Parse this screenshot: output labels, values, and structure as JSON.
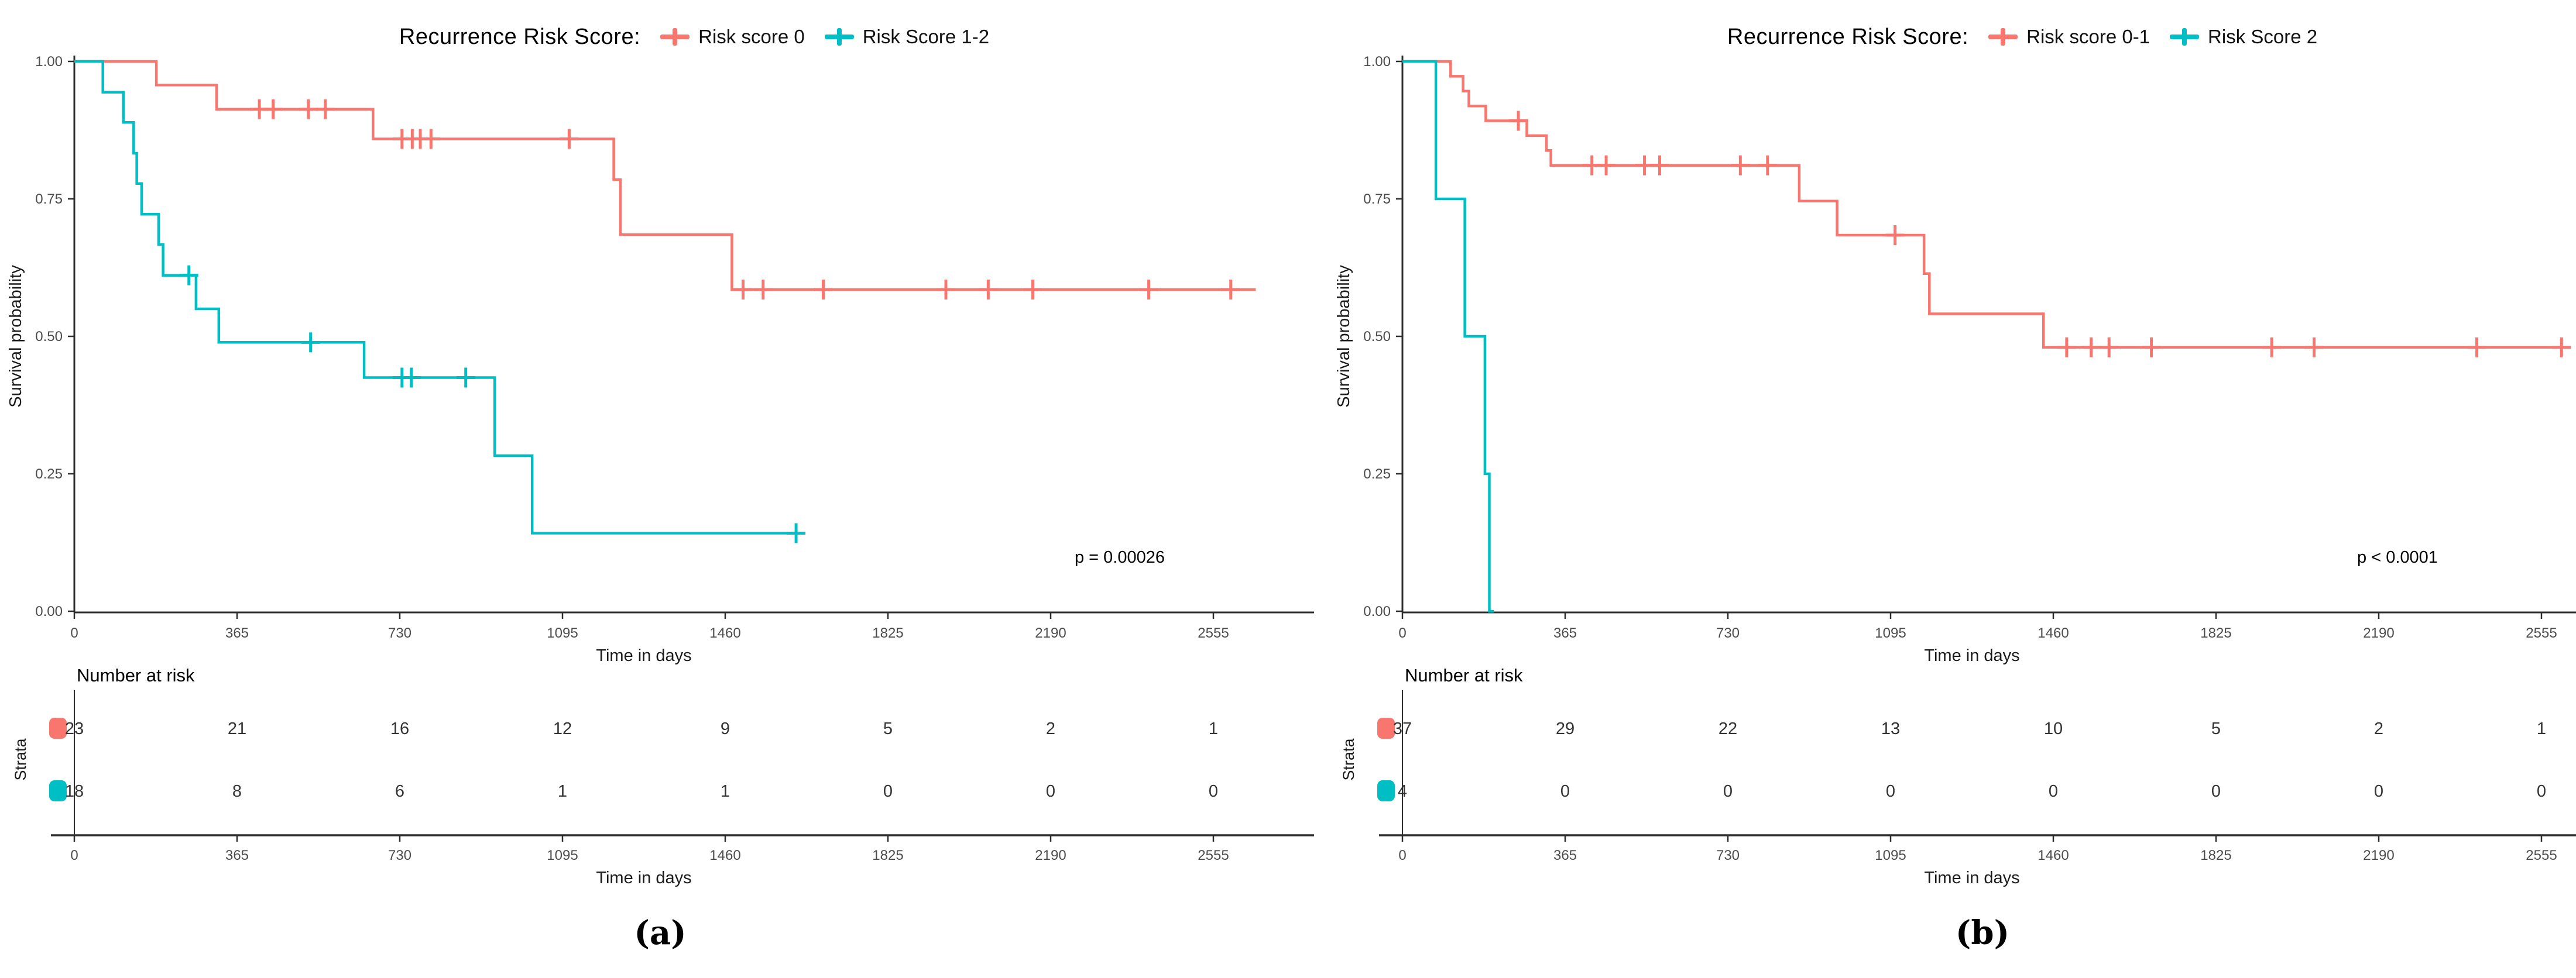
{
  "shared": {
    "legend_title": "Recurrence Risk Score:",
    "x_label": "Time in days",
    "y_label": "Survival probability",
    "x_ticks": [
      0,
      365,
      730,
      1095,
      1460,
      1825,
      2190,
      2555
    ],
    "y_ticks": [
      0,
      0.25,
      0.5,
      0.75,
      1
    ],
    "y_tick_labels": [
      "0.00",
      "0.25",
      "0.50",
      "0.75",
      "1.00"
    ],
    "risk_table_title": "Number at risk",
    "strata_label": "Strata",
    "colors": {
      "red": "#F8766D",
      "teal": "#00BFC4",
      "axis": "#2e2e2e",
      "tick_text": "#4d4d4d",
      "text": "#000000"
    }
  },
  "chart_data": [
    {
      "id": "a",
      "type": "km_step",
      "caption": "(a)",
      "legend_title": "Recurrence Risk Score:",
      "p_value_label": "p = 0.00026",
      "x_label": "Time in days",
      "y_label": "Survival probability",
      "xlim": [
        0,
        2700
      ],
      "ylim": [
        0,
        1
      ],
      "series": [
        {
          "name": "Risk score 0",
          "color_key": "red",
          "steps": [
            [
              0,
              1
            ],
            [
              184,
              0.957
            ],
            [
              319,
              0.913
            ],
            [
              670,
              0.859
            ],
            [
              1210,
              0.785
            ],
            [
              1225,
              0.685
            ],
            [
              1475,
              0.585
            ]
          ],
          "end": 2650,
          "censors": [
            [
              415,
              0.913
            ],
            [
              446,
              0.913
            ],
            [
              525,
              0.913
            ],
            [
              563,
              0.913
            ],
            [
              735,
              0.859
            ],
            [
              758,
              0.859
            ],
            [
              776,
              0.859
            ],
            [
              800,
              0.859
            ],
            [
              1110,
              0.859
            ],
            [
              1500,
              0.585
            ],
            [
              1545,
              0.585
            ],
            [
              1680,
              0.585
            ],
            [
              1955,
              0.585
            ],
            [
              2050,
              0.585
            ],
            [
              2150,
              0.585
            ],
            [
              2410,
              0.585
            ],
            [
              2594,
              0.585
            ]
          ],
          "number_at_risk": [
            23,
            21,
            16,
            12,
            9,
            5,
            2,
            1
          ]
        },
        {
          "name": "Risk Score 1-2",
          "color_key": "teal",
          "steps": [
            [
              0,
              1
            ],
            [
              64,
              0.944
            ],
            [
              110,
              0.889
            ],
            [
              133,
              0.833
            ],
            [
              140,
              0.778
            ],
            [
              151,
              0.722
            ],
            [
              189,
              0.667
            ],
            [
              199,
              0.611
            ],
            [
              273,
              0.55
            ],
            [
              324,
              0.489
            ],
            [
              650,
              0.425
            ],
            [
              943,
              0.283
            ],
            [
              1027,
              0.142
            ]
          ],
          "end": 1619,
          "censors": [
            [
              257,
              0.611
            ],
            [
              530,
              0.489
            ],
            [
              735,
              0.425
            ],
            [
              756,
              0.425
            ],
            [
              878,
              0.425
            ],
            [
              1619,
              0.142
            ]
          ],
          "number_at_risk": [
            18,
            8,
            6,
            1,
            1,
            0,
            0,
            0
          ]
        }
      ]
    },
    {
      "id": "b",
      "type": "km_step",
      "caption": "(b)",
      "legend_title": "Recurrence Risk Score:",
      "p_value_label": "p < 0.0001",
      "x_label": "Time in days",
      "y_label": "Survival probability",
      "xlim": [
        0,
        2700
      ],
      "ylim": [
        0,
        1
      ],
      "series": [
        {
          "name": "Risk score 0-1",
          "color_key": "red",
          "steps": [
            [
              0,
              1
            ],
            [
              108,
              0.973
            ],
            [
              136,
              0.946
            ],
            [
              149,
              0.919
            ],
            [
              187,
              0.892
            ],
            [
              279,
              0.865
            ],
            [
              323,
              0.838
            ],
            [
              333,
              0.811
            ],
            [
              890,
              0.746
            ],
            [
              975,
              0.684
            ],
            [
              1170,
              0.614
            ],
            [
              1182,
              0.541
            ],
            [
              1438,
              0.48
            ]
          ],
          "end": 2620,
          "censors": [
            [
              260,
              0.892
            ],
            [
              425,
              0.811
            ],
            [
              457,
              0.811
            ],
            [
              543,
              0.811
            ],
            [
              577,
              0.811
            ],
            [
              758,
              0.811
            ],
            [
              819,
              0.811
            ],
            [
              1105,
              0.684
            ],
            [
              1490,
              0.48
            ],
            [
              1545,
              0.48
            ],
            [
              1585,
              0.48
            ],
            [
              1680,
              0.48
            ],
            [
              1950,
              0.48
            ],
            [
              2045,
              0.48
            ],
            [
              2410,
              0.48
            ],
            [
              2600,
              0.48
            ]
          ],
          "number_at_risk": [
            37,
            29,
            22,
            13,
            10,
            5,
            2,
            1
          ]
        },
        {
          "name": "Risk Score 2",
          "color_key": "teal",
          "steps": [
            [
              0,
              1
            ],
            [
              75,
              0.75
            ],
            [
              140,
              0.5
            ],
            [
              185,
              0.25
            ],
            [
              195,
              0
            ]
          ],
          "end": 205,
          "censors": [],
          "number_at_risk": [
            4,
            0,
            0,
            0,
            0,
            0,
            0,
            0
          ]
        }
      ]
    }
  ]
}
